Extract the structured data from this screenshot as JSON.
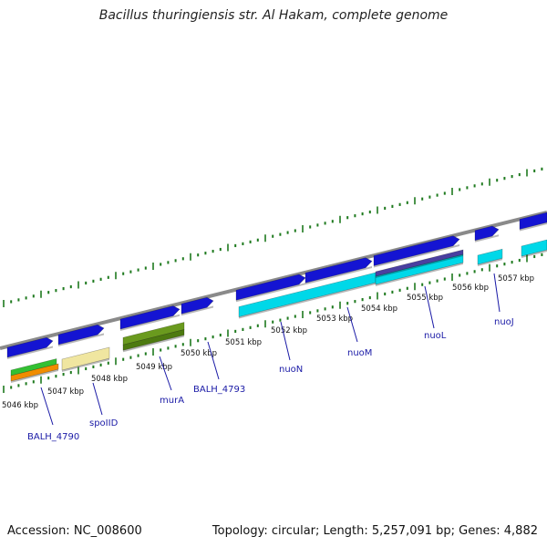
{
  "title": "Bacillus thuringiensis str. Al Hakam, complete genome",
  "footer": {
    "accession": "Accession: NC_008600",
    "topology": "Topology: circular; Length: 5,257,091 bp; Genes: 4,882"
  },
  "colors": {
    "backbone": "#8a8a8a",
    "tick": "#1e7a1e",
    "label_line": "#1a1aa6",
    "gene_blue": "#1414d2",
    "cds_cyan": "#00d8e8",
    "gene_purple": "#4a3fa0",
    "gene_green": "#33c033",
    "gene_orange": "#f08c00",
    "gene_yellow": "#f0e6a0",
    "gene_olive": "#6a9a1e"
  },
  "kbp_labels": [
    "5046 kbp",
    "5047 kbp",
    "5048 kbp",
    "5049 kbp",
    "5050 kbp",
    "5051 kbp",
    "5052 kbp",
    "5053 kbp",
    "5054 kbp",
    "5055 kbp",
    "5056 kbp",
    "5057 kbp"
  ],
  "gene_labels": [
    "BALH_4790",
    "spoIID",
    "murA",
    "BALH_4793",
    "nuoN",
    "nuoM",
    "nuoL",
    "nuoJ"
  ]
}
